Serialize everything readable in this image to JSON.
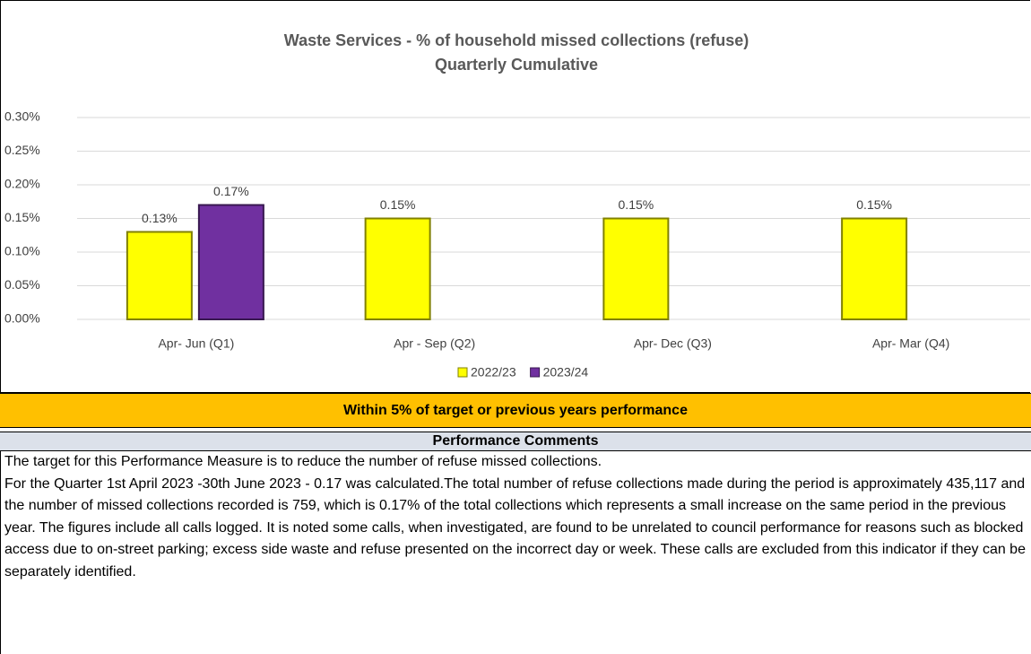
{
  "chart_data": {
    "type": "bar",
    "title": "Waste Services - % of household missed collections (refuse)",
    "subtitle": "Quarterly Cumulative",
    "categories": [
      "Apr- Jun  (Q1)",
      "Apr - Sep  (Q2)",
      "Apr- Dec  (Q3)",
      "Apr- Mar  (Q4)"
    ],
    "series": [
      {
        "name": "2022/23",
        "color": "#ffff00",
        "values": [
          0.13,
          0.15,
          0.15,
          0.15
        ],
        "value_labels": [
          "0.13%",
          "0.15%",
          "0.15%",
          "0.15%"
        ]
      },
      {
        "name": "2023/24",
        "color": "#7030a0",
        "values": [
          0.17,
          null,
          null,
          null
        ],
        "value_labels": [
          "0.17%",
          null,
          null,
          null
        ]
      }
    ],
    "ylim": [
      0,
      0.3
    ],
    "yticks": [
      {
        "value": 0,
        "label": "0.00%"
      },
      {
        "value": 0.05,
        "label": "0.05%"
      },
      {
        "value": 0.1,
        "label": "0.10%"
      },
      {
        "value": 0.15,
        "label": "0.15%"
      },
      {
        "value": 0.2,
        "label": "0.20%"
      },
      {
        "value": 0.25,
        "label": "0.25%"
      },
      {
        "value": 0.3,
        "label": "0.30%"
      }
    ],
    "grid": true,
    "legend": "bottom"
  },
  "status": "Within 5% of target or previous years performance",
  "comments": {
    "heading": "Performance Comments",
    "paragraphs": [
      "The target for this Performance Measure is to reduce the number of refuse missed collections.",
      "For the Quarter 1st April 2023 -30th June 2023 - 0.17 was calculated.The total number of refuse collections made during the period is approximately 435,117 and the number of missed collections recorded is 759, which is 0.17% of the total collections which represents a small increase on the same period in the previous year. The figures include all calls logged. It is noted some calls, when investigated, are found to be unrelated to council performance for reasons such as blocked access due to on-street parking; excess side waste and refuse presented on the incorrect day or week. These calls are excluded from this indicator if they can be separately identified."
    ]
  }
}
